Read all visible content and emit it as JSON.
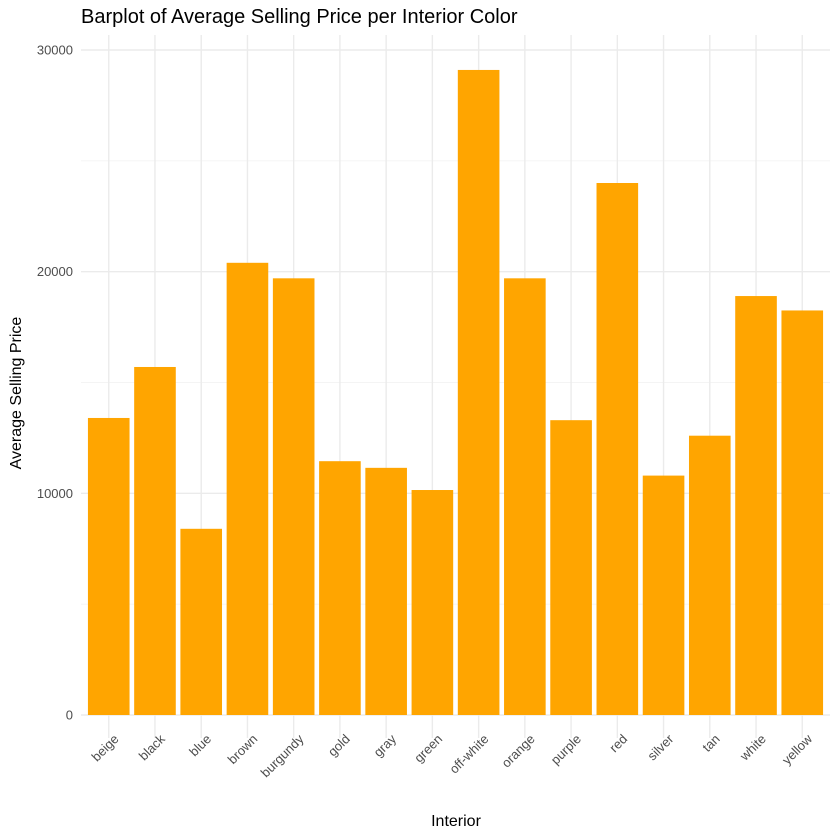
{
  "chart_data": {
    "type": "bar",
    "title": "Barplot of Average Selling Price per Interior Color",
    "xlabel": "Interior",
    "ylabel": "Average Selling Price",
    "categories": [
      "beige",
      "black",
      "blue",
      "brown",
      "burgundy",
      "gold",
      "gray",
      "green",
      "off-white",
      "orange",
      "purple",
      "red",
      "silver",
      "tan",
      "white",
      "yellow"
    ],
    "values": [
      13400,
      15700,
      8400,
      20400,
      19700,
      11450,
      11150,
      10150,
      29100,
      19700,
      13300,
      24000,
      10800,
      12600,
      18900,
      18250
    ],
    "ylim": [
      0,
      30000
    ],
    "yticks": [
      0,
      10000,
      20000,
      30000
    ],
    "ytick_labels": [
      "0",
      "10000",
      "20000",
      "30000"
    ],
    "bar_color": "#FFA500",
    "grid": true,
    "legend": "none"
  }
}
